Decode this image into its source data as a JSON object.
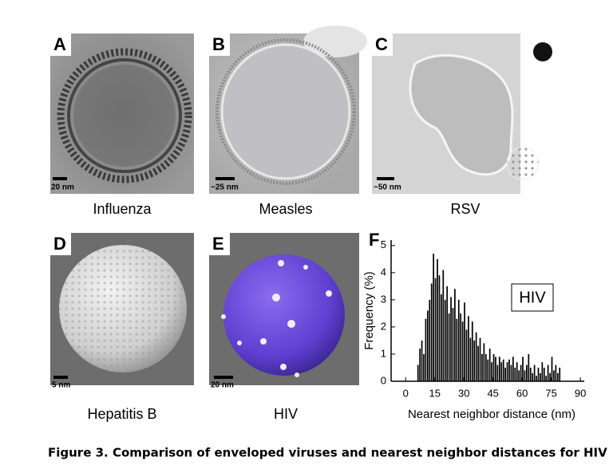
{
  "panels": [
    {
      "letter": "A",
      "scale": "20 nm",
      "caption": "Influenza"
    },
    {
      "letter": "B",
      "scale": "~25 nm",
      "caption": "Measles"
    },
    {
      "letter": "C",
      "scale": "~50 nm",
      "caption": "RSV"
    },
    {
      "letter": "D",
      "scale": "5 nm",
      "caption": "Hepatitis B"
    },
    {
      "letter": "E",
      "scale": "20 nm",
      "caption": "HIV"
    }
  ],
  "chart_data": {
    "type": "histogram",
    "panel_label": "F",
    "annotation": "HIV",
    "xlabel": "Nearest neighbor distance (nm)",
    "ylabel": "Frequency (%)",
    "color": "#000000",
    "bins": [
      6,
      7,
      8,
      9,
      10,
      11,
      12,
      13,
      14,
      15,
      16,
      17,
      18,
      19,
      20,
      21,
      22,
      23,
      24,
      25,
      26,
      27,
      28,
      29,
      30,
      31,
      32,
      33,
      34,
      35,
      36,
      37,
      38,
      39,
      40,
      41,
      42,
      43,
      44,
      45,
      46,
      47,
      48,
      49,
      50,
      51,
      52,
      53,
      54,
      55,
      56,
      57,
      58,
      59,
      60,
      61,
      62,
      63,
      64,
      65,
      66,
      67,
      68,
      69,
      70,
      71,
      72,
      73,
      74,
      75,
      76,
      77,
      78,
      79,
      80
    ],
    "values": [
      0.6,
      1.2,
      1.5,
      1.0,
      2.3,
      2.6,
      3.0,
      3.6,
      4.7,
      3.8,
      4.5,
      3.9,
      3.2,
      4.1,
      3.0,
      3.5,
      2.5,
      3.1,
      2.7,
      3.4,
      2.3,
      3.0,
      2.5,
      2.2,
      2.9,
      1.9,
      2.4,
      1.6,
      2.2,
      1.5,
      1.8,
      1.3,
      1.6,
      1.0,
      1.4,
      1.0,
      0.8,
      1.2,
      0.7,
      1.0,
      0.9,
      0.6,
      0.9,
      0.7,
      0.8,
      0.5,
      0.7,
      0.8,
      0.6,
      0.9,
      0.5,
      0.7,
      0.4,
      0.6,
      0.9,
      0.4,
      0.6,
      1.0,
      0.5,
      0.3,
      0.6,
      0.2,
      0.5,
      0.3,
      0.7,
      0.5,
      0.2,
      0.6,
      0.3,
      0.9,
      0.4,
      0.6,
      0.3,
      0.5
    ],
    "xlim": [
      -7.5,
      92
    ],
    "ylim": [
      0,
      5.2
    ],
    "xticks": [
      0,
      15,
      30,
      45,
      60,
      75,
      90
    ],
    "yticks": [
      0,
      1,
      2,
      3,
      4,
      5
    ]
  },
  "figure_caption": "Figure 3. Comparison of enveloped viruses and nearest neighbor distances for HIV"
}
